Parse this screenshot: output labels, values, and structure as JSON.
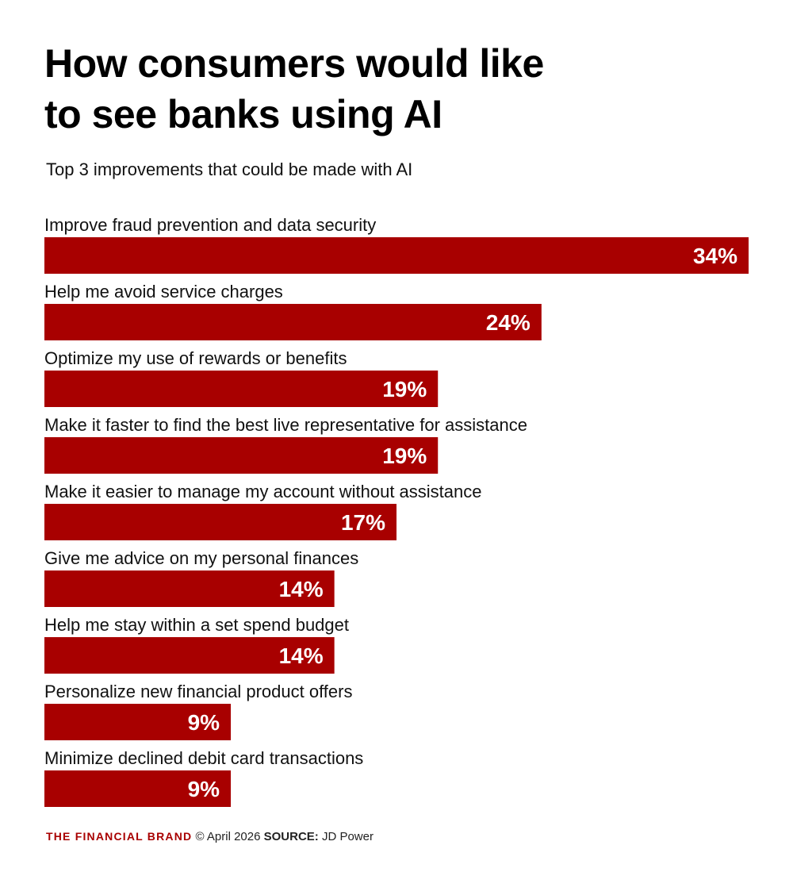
{
  "title_line1": "How consumers would like",
  "title_line2": "to see banks using AI",
  "subtitle": "Top 3 improvements that could be made with AI",
  "footer": {
    "brand": "THE FINANCIAL BRAND",
    "date": "© April 2026",
    "source_label": "SOURCE:",
    "source": "JD Power"
  },
  "colors": {
    "bar": "#a80000",
    "bar_text": "#ffffff",
    "label_text": "#111111"
  },
  "chart_data": {
    "type": "bar",
    "orientation": "horizontal",
    "categories": [
      "Improve fraud prevention and data security",
      "Help me avoid service charges",
      "Optimize my use of rewards or benefits",
      "Make it faster to find the best live representative for assistance",
      "Make it easier to manage my account without assistance",
      "Give me advice on my personal finances",
      "Help me stay within a set spend budget",
      "Personalize new financial product offers",
      "Minimize declined debit card transactions"
    ],
    "values": [
      34,
      24,
      19,
      19,
      17,
      14,
      14,
      9,
      9
    ],
    "value_labels": [
      "34%",
      "24%",
      "19%",
      "19%",
      "17%",
      "14%",
      "14%",
      "9%",
      "9%"
    ],
    "xlim": [
      0,
      34
    ],
    "grid": false,
    "legend": "none"
  }
}
